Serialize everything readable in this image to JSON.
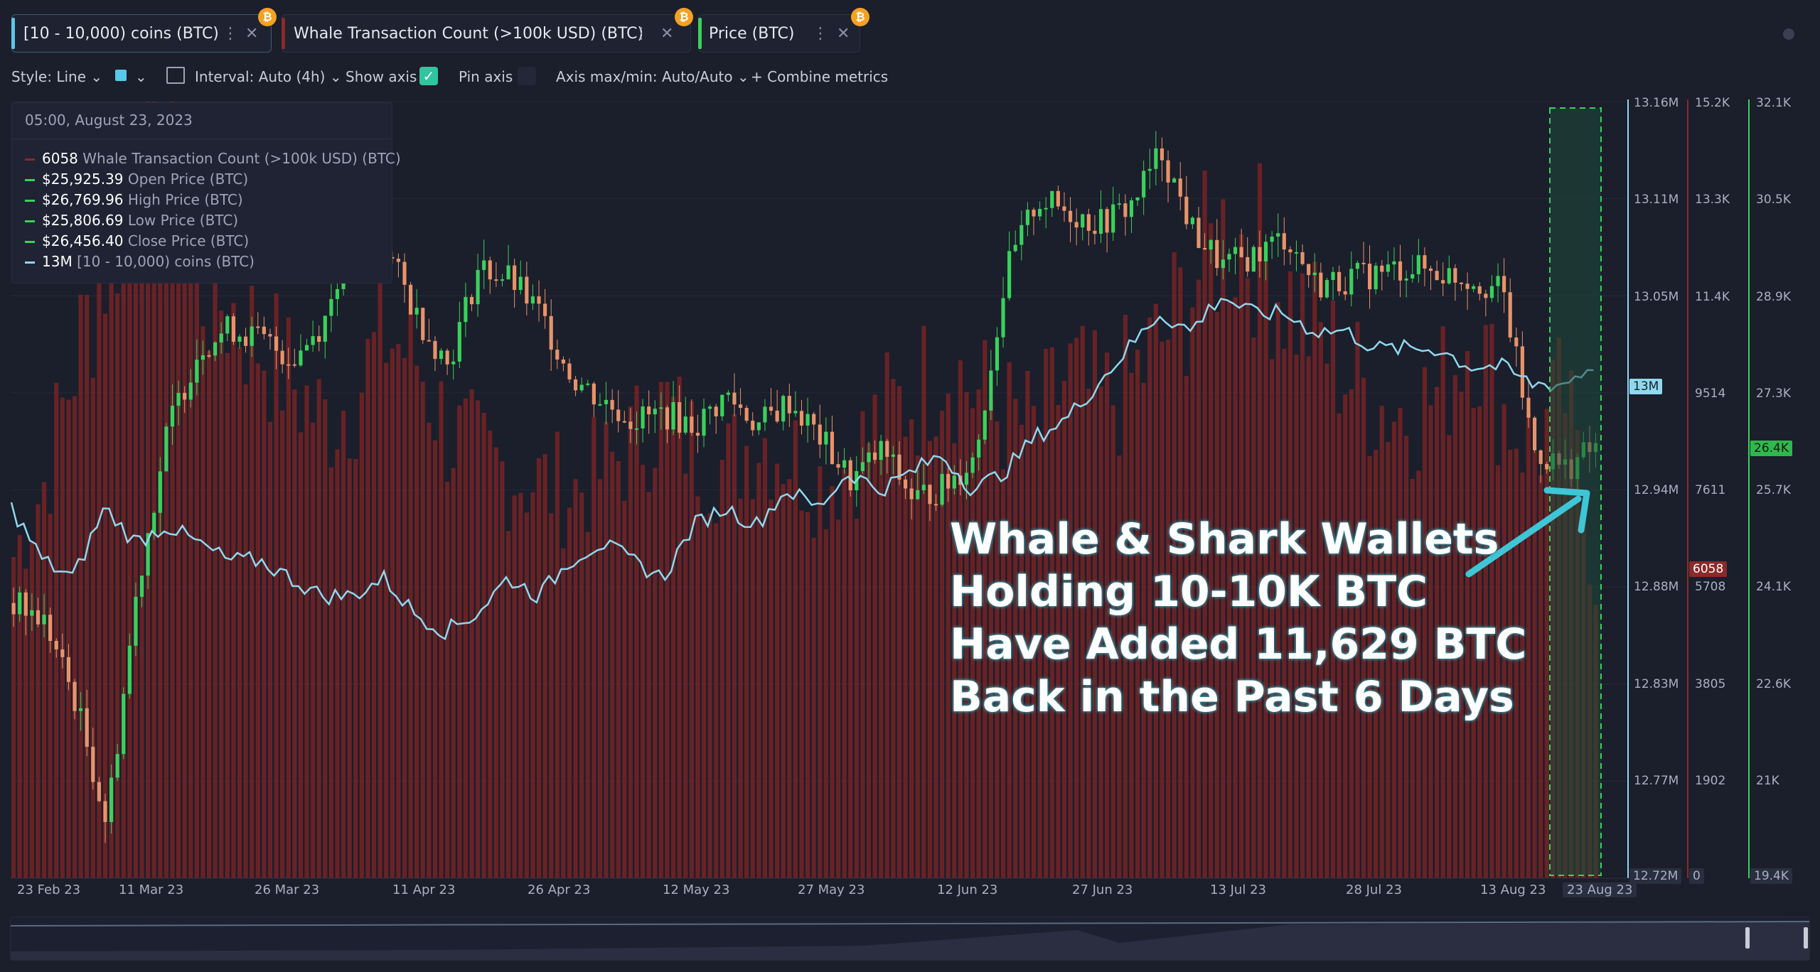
{
  "tabs": [
    {
      "label": "[10 - 10,000) coins (BTC)",
      "accent": "#5ac8e8"
    },
    {
      "label": "Whale Transaction Count (>100k USD) (BTC)",
      "accent": "#8b2a2a"
    },
    {
      "label": "Price (BTC)",
      "accent": "#3ad15c"
    }
  ],
  "toolbar": {
    "style": "Style: Line",
    "interval": "Interval: Auto (4h)",
    "show_axis": "Show axis",
    "pin_axis": "Pin axis",
    "axis_maxmin": "Axis max/min: Auto/Auto",
    "combine": "Combine metrics"
  },
  "tooltip": {
    "date": "05:00, August 23, 2023",
    "rows": [
      {
        "value": "6058",
        "name": "Whale Transaction Count (>100k USD) (BTC)",
        "color": "#8b2a2a"
      },
      {
        "value": "$25,925.39",
        "name": "Open Price (BTC)",
        "color": "#3ad15c"
      },
      {
        "value": "$26,769.96",
        "name": "High Price (BTC)",
        "color": "#3ad15c"
      },
      {
        "value": "$25,806.69",
        "name": "Low Price (BTC)",
        "color": "#3ad15c"
      },
      {
        "value": "$26,456.40",
        "name": "Close Price (BTC)",
        "color": "#3ad15c"
      },
      {
        "value": "13M",
        "name": "[10 - 10,000) coins (BTC)",
        "color": "#8fd8ee"
      }
    ]
  },
  "annotation": {
    "lines": [
      "Whale & Shark Wallets",
      "Holding 10-10K BTC",
      "Have Added 11,629 BTC",
      "Back in the Past 6 Days"
    ]
  },
  "chart_data": {
    "type": "line",
    "x_labels": [
      "23 Feb 23",
      "11 Mar 23",
      "26 Mar 23",
      "11 Apr 23",
      "26 Apr 23",
      "12 May 23",
      "27 May 23",
      "12 Jun 23",
      "27 Jun 23",
      "13 Jul 23",
      "28 Jul 23",
      "13 Aug 23",
      "23 Aug 23"
    ],
    "axes": {
      "coins": {
        "ticks": [
          "13.16M",
          "13.11M",
          "13.05M",
          "12.94M",
          "12.88M",
          "12.83M",
          "12.77M",
          "12.72M"
        ],
        "current": "13M",
        "range": [
          12.72,
          13.16
        ],
        "unit": "M"
      },
      "whale_tx": {
        "ticks": [
          "15.2K",
          "13.3K",
          "11.4K",
          "9514",
          "7611",
          "5708",
          "3805",
          "1902",
          "0"
        ],
        "current": "6058",
        "range": [
          0,
          15200
        ]
      },
      "price": {
        "ticks": [
          "32.1K",
          "30.5K",
          "28.9K",
          "27.3K",
          "25.7K",
          "24.1K",
          "22.6K",
          "21K",
          "19.4K"
        ],
        "current": "26.4K",
        "range": [
          19400,
          32100
        ]
      }
    },
    "series": [
      {
        "name": "[10 - 10,000) coins (BTC)",
        "color": "#8fd8ee",
        "values": [
          12.93,
          12.9,
          12.89,
          12.93,
          12.91,
          12.92,
          12.91,
          12.9,
          12.9,
          12.89,
          12.88,
          12.88,
          12.89,
          12.87,
          12.86,
          12.87,
          12.89,
          12.88,
          12.9,
          12.91,
          12.9,
          12.89,
          12.92,
          12.93,
          12.92,
          12.94,
          12.93,
          12.95,
          12.94,
          12.95,
          12.96,
          12.94,
          12.95,
          12.97,
          12.98,
          13.0,
          13.02,
          13.04,
          13.03,
          13.05,
          13.04,
          13.04,
          13.03,
          13.03,
          13.02,
          13.02,
          13.02,
          13.01,
          13.01,
          13.0,
          13.0,
          13.01
        ]
      },
      {
        "name": "Whale Transaction Count (>100k USD) (BTC)",
        "color": "#8b2a2a",
        "values": [
          6500,
          8000,
          10500,
          12500,
          14500,
          15200,
          12000,
          11500,
          10800,
          10000,
          9200,
          9800,
          11000,
          10500,
          9000,
          8500,
          8200,
          8000,
          7800,
          8200,
          8800,
          9500,
          8600,
          8300,
          9000,
          8600,
          8000,
          8400,
          9300,
          9700,
          10500,
          9800,
          9300,
          9000,
          10200,
          9500,
          10000,
          10800,
          12000,
          13000,
          12800,
          11800,
          11000,
          10200,
          9600,
          9400,
          9800,
          11200,
          9500,
          8600,
          9800,
          6058
        ]
      },
      {
        "name": "Price (BTC)",
        "color": "#3ad15c",
        "values": [
          23900,
          23600,
          22300,
          20300,
          24200,
          26800,
          28100,
          28400,
          28200,
          27900,
          28500,
          30200,
          29700,
          28600,
          27800,
          29400,
          29200,
          28600,
          27600,
          27200,
          26900,
          27000,
          26800,
          27300,
          26800,
          27200,
          26600,
          25900,
          26400,
          25600,
          25800,
          26300,
          29300,
          30500,
          30300,
          30100,
          30400,
          31300,
          30000,
          29400,
          29600,
          29900,
          29100,
          29200,
          29300,
          29400,
          29300,
          29200,
          29000,
          26400,
          26100,
          26456
        ]
      }
    ],
    "grid": true,
    "legend": "top-left"
  }
}
